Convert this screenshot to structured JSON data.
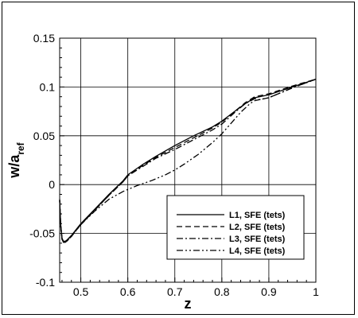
{
  "chart_data": {
    "type": "line",
    "title": "",
    "xlabel": "z",
    "ylabel_main": "w/a",
    "ylabel_sub": "ref",
    "xlim": [
      0.455,
      1.0
    ],
    "ylim": [
      -0.1,
      0.15
    ],
    "xticks": [
      0.5,
      0.6,
      0.7,
      0.8,
      0.9,
      1.0
    ],
    "xtick_labels": [
      "0.5",
      "0.6",
      "0.7",
      "0.8",
      "0.9",
      "1"
    ],
    "yticks": [
      -0.1,
      -0.05,
      0,
      0.05,
      0.1,
      0.15
    ],
    "ytick_labels": [
      "-0.1",
      "-0.05",
      "0",
      "0.05",
      "0.1",
      "0.15"
    ],
    "grid": true,
    "legend_position": "lower-right",
    "series": [
      {
        "name": "L1, SFE (tets)",
        "dash": "solid",
        "x": [
          0.455,
          0.457,
          0.46,
          0.463,
          0.467,
          0.47,
          0.48,
          0.5,
          0.53,
          0.56,
          0.59,
          0.6,
          0.63,
          0.66,
          0.7,
          0.74,
          0.78,
          0.8,
          0.83,
          0.85,
          0.87,
          0.88,
          0.9,
          0.95,
          1.0
        ],
        "y": [
          -0.015,
          -0.04,
          -0.055,
          -0.058,
          -0.058,
          -0.057,
          -0.052,
          -0.04,
          -0.025,
          -0.01,
          0.004,
          0.01,
          0.02,
          0.029,
          0.04,
          0.05,
          0.059,
          0.065,
          0.076,
          0.083,
          0.089,
          0.09,
          0.092,
          0.1,
          0.108
        ]
      },
      {
        "name": "L2, SFE (tets)",
        "dash": "dashed",
        "x": [
          0.455,
          0.457,
          0.46,
          0.463,
          0.467,
          0.47,
          0.48,
          0.5,
          0.53,
          0.56,
          0.59,
          0.6,
          0.63,
          0.66,
          0.7,
          0.74,
          0.78,
          0.8,
          0.83,
          0.85,
          0.87,
          0.88,
          0.9,
          0.95,
          1.0
        ],
        "y": [
          -0.016,
          -0.041,
          -0.056,
          -0.059,
          -0.059,
          -0.058,
          -0.053,
          -0.041,
          -0.026,
          -0.011,
          0.003,
          0.009,
          0.019,
          0.028,
          0.038,
          0.048,
          0.058,
          0.064,
          0.076,
          0.084,
          0.09,
          0.091,
          0.093,
          0.101,
          0.108
        ]
      },
      {
        "name": "L3, SFE (tets)",
        "dash": "dashdot",
        "x": [
          0.455,
          0.457,
          0.46,
          0.463,
          0.467,
          0.47,
          0.48,
          0.5,
          0.53,
          0.56,
          0.59,
          0.6,
          0.63,
          0.66,
          0.7,
          0.74,
          0.78,
          0.8,
          0.83,
          0.85,
          0.87,
          0.88,
          0.9,
          0.95,
          1.0
        ],
        "y": [
          -0.016,
          -0.041,
          -0.056,
          -0.059,
          -0.059,
          -0.058,
          -0.053,
          -0.041,
          -0.026,
          -0.011,
          0.003,
          0.009,
          0.018,
          0.027,
          0.036,
          0.046,
          0.056,
          0.062,
          0.075,
          0.083,
          0.088,
          0.087,
          0.089,
          0.099,
          0.108
        ]
      },
      {
        "name": "L4, SFE (tets)",
        "dash": "dashdotdot",
        "x": [
          0.455,
          0.457,
          0.46,
          0.463,
          0.467,
          0.47,
          0.48,
          0.5,
          0.53,
          0.56,
          0.59,
          0.62,
          0.65,
          0.68,
          0.7,
          0.72,
          0.75,
          0.78,
          0.8,
          0.82,
          0.84,
          0.86,
          0.87,
          0.88,
          0.9,
          0.95,
          1.0
        ],
        "y": [
          -0.016,
          -0.041,
          -0.056,
          -0.059,
          -0.059,
          -0.058,
          -0.053,
          -0.041,
          -0.027,
          -0.015,
          -0.007,
          -0.001,
          0.004,
          0.01,
          0.015,
          0.021,
          0.031,
          0.043,
          0.052,
          0.063,
          0.074,
          0.083,
          0.086,
          0.087,
          0.089,
          0.099,
          0.108
        ]
      }
    ]
  }
}
